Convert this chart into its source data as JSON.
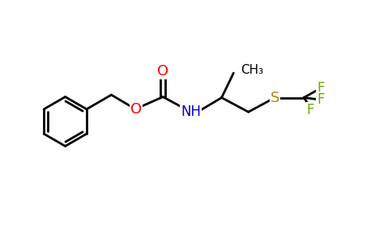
{
  "background_color": "#ffffff",
  "bond_color": "#000000",
  "oxygen_color": "#ff0000",
  "nitrogen_color": "#0000cc",
  "sulfur_color": "#b8860b",
  "fluorine_color": "#6aaa00",
  "line_width": 2.0,
  "figsize": [
    4.84,
    3.0
  ],
  "dpi": 100,
  "xlim": [
    0,
    9.68
  ],
  "ylim": [
    0,
    6.0
  ]
}
